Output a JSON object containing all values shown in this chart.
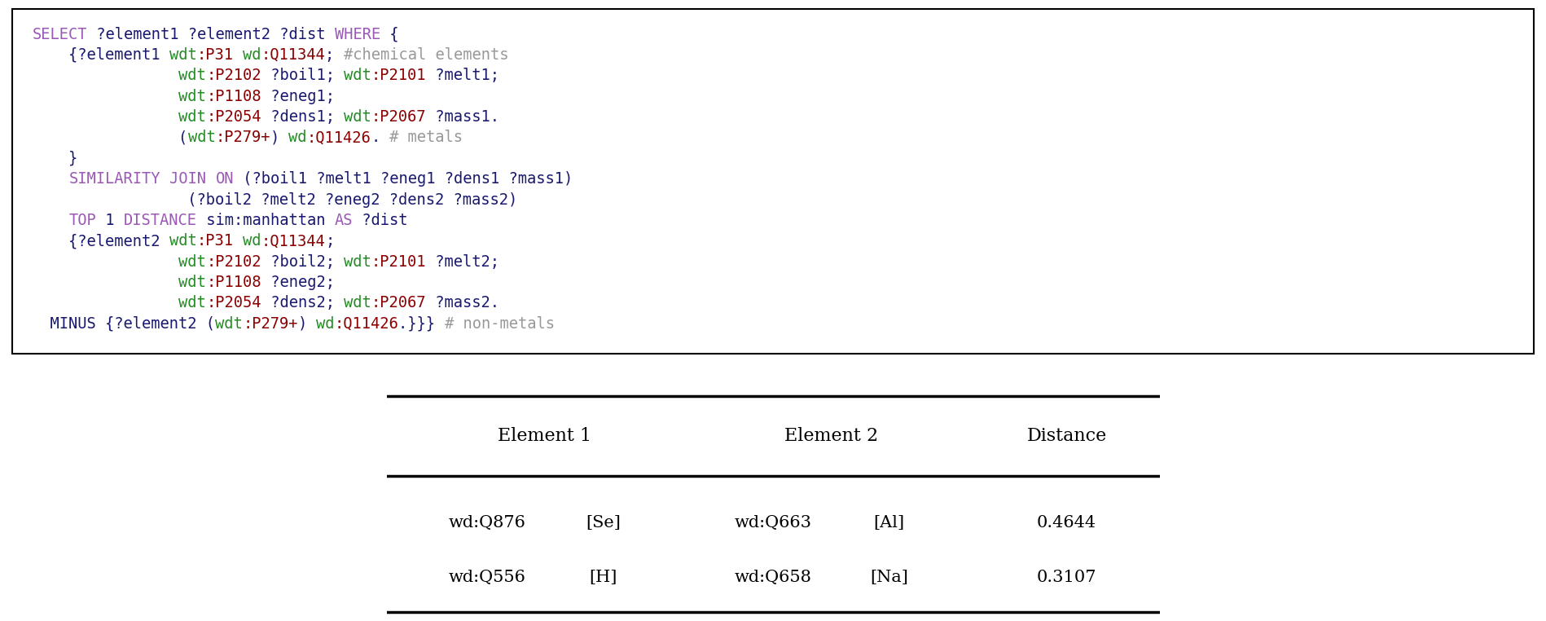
{
  "code_lines": [
    {
      "tokens": [
        {
          "text": "SELECT",
          "color": "#9B59B6"
        },
        {
          "text": " ?element1 ?element2 ?dist ",
          "color": "#191970"
        },
        {
          "text": "WHERE",
          "color": "#9B59B6"
        },
        {
          "text": " {",
          "color": "#191970"
        }
      ]
    },
    {
      "tokens": [
        {
          "text": "    {?element1 ",
          "color": "#191970"
        },
        {
          "text": "wdt",
          "color": "#228B22"
        },
        {
          "text": ":P31",
          "color": "#8B0000"
        },
        {
          "text": " ",
          "color": "#191970"
        },
        {
          "text": "wd",
          "color": "#228B22"
        },
        {
          "text": ":Q11344",
          "color": "#8B0000"
        },
        {
          "text": "; ",
          "color": "#191970"
        },
        {
          "text": "#chemical elements",
          "color": "#999999"
        }
      ]
    },
    {
      "tokens": [
        {
          "text": "                ",
          "color": "#191970"
        },
        {
          "text": "wdt",
          "color": "#228B22"
        },
        {
          "text": ":P2102",
          "color": "#8B0000"
        },
        {
          "text": " ?boil1; ",
          "color": "#191970"
        },
        {
          "text": "wdt",
          "color": "#228B22"
        },
        {
          "text": ":P2101",
          "color": "#8B0000"
        },
        {
          "text": " ?melt1;",
          "color": "#191970"
        }
      ]
    },
    {
      "tokens": [
        {
          "text": "                ",
          "color": "#191970"
        },
        {
          "text": "wdt",
          "color": "#228B22"
        },
        {
          "text": ":P1108",
          "color": "#8B0000"
        },
        {
          "text": " ?eneg1;",
          "color": "#191970"
        }
      ]
    },
    {
      "tokens": [
        {
          "text": "                ",
          "color": "#191970"
        },
        {
          "text": "wdt",
          "color": "#228B22"
        },
        {
          "text": ":P2054",
          "color": "#8B0000"
        },
        {
          "text": " ?dens1; ",
          "color": "#191970"
        },
        {
          "text": "wdt",
          "color": "#228B22"
        },
        {
          "text": ":P2067",
          "color": "#8B0000"
        },
        {
          "text": " ?mass1.",
          "color": "#191970"
        }
      ]
    },
    {
      "tokens": [
        {
          "text": "                (",
          "color": "#191970"
        },
        {
          "text": "wdt",
          "color": "#228B22"
        },
        {
          "text": ":P279+",
          "color": "#8B0000"
        },
        {
          "text": ") ",
          "color": "#191970"
        },
        {
          "text": "wd",
          "color": "#228B22"
        },
        {
          "text": ":Q11426",
          "color": "#8B0000"
        },
        {
          "text": ". ",
          "color": "#191970"
        },
        {
          "text": "# metals",
          "color": "#999999"
        }
      ]
    },
    {
      "tokens": [
        {
          "text": "    }",
          "color": "#191970"
        }
      ]
    },
    {
      "tokens": [
        {
          "text": "    ",
          "color": "#191970"
        },
        {
          "text": "SIMILARITY",
          "color": "#9B59B6"
        },
        {
          "text": " ",
          "color": "#191970"
        },
        {
          "text": "JOIN",
          "color": "#9B59B6"
        },
        {
          "text": " ",
          "color": "#191970"
        },
        {
          "text": "ON",
          "color": "#9B59B6"
        },
        {
          "text": " (?boil1 ?melt1 ?eneg1 ?dens1 ?mass1)",
          "color": "#191970"
        }
      ]
    },
    {
      "tokens": [
        {
          "text": "                 (?boil2 ?melt2 ?eneg2 ?dens2 ?mass2)",
          "color": "#191970"
        }
      ]
    },
    {
      "tokens": [
        {
          "text": "    ",
          "color": "#191970"
        },
        {
          "text": "TOP",
          "color": "#9B59B6"
        },
        {
          "text": " 1 ",
          "color": "#191970"
        },
        {
          "text": "DISTANCE",
          "color": "#9B59B6"
        },
        {
          "text": " sim:manhattan ",
          "color": "#191970"
        },
        {
          "text": "AS",
          "color": "#9B59B6"
        },
        {
          "text": " ?dist",
          "color": "#191970"
        }
      ]
    },
    {
      "tokens": [
        {
          "text": "    {?element2 ",
          "color": "#191970"
        },
        {
          "text": "wdt",
          "color": "#228B22"
        },
        {
          "text": ":P31",
          "color": "#8B0000"
        },
        {
          "text": " ",
          "color": "#191970"
        },
        {
          "text": "wd",
          "color": "#228B22"
        },
        {
          "text": ":Q11344",
          "color": "#8B0000"
        },
        {
          "text": ";",
          "color": "#191970"
        }
      ]
    },
    {
      "tokens": [
        {
          "text": "                ",
          "color": "#191970"
        },
        {
          "text": "wdt",
          "color": "#228B22"
        },
        {
          "text": ":P2102",
          "color": "#8B0000"
        },
        {
          "text": " ?boil2; ",
          "color": "#191970"
        },
        {
          "text": "wdt",
          "color": "#228B22"
        },
        {
          "text": ":P2101",
          "color": "#8B0000"
        },
        {
          "text": " ?melt2;",
          "color": "#191970"
        }
      ]
    },
    {
      "tokens": [
        {
          "text": "                ",
          "color": "#191970"
        },
        {
          "text": "wdt",
          "color": "#228B22"
        },
        {
          "text": ":P1108",
          "color": "#8B0000"
        },
        {
          "text": " ?eneg2;",
          "color": "#191970"
        }
      ]
    },
    {
      "tokens": [
        {
          "text": "                ",
          "color": "#191970"
        },
        {
          "text": "wdt",
          "color": "#228B22"
        },
        {
          "text": ":P2054",
          "color": "#8B0000"
        },
        {
          "text": " ?dens2; ",
          "color": "#191970"
        },
        {
          "text": "wdt",
          "color": "#228B22"
        },
        {
          "text": ":P2067",
          "color": "#8B0000"
        },
        {
          "text": " ?mass2.",
          "color": "#191970"
        }
      ]
    },
    {
      "tokens": [
        {
          "text": "  MINUS ",
          "color": "#191970"
        },
        {
          "text": "{?element2 (",
          "color": "#191970"
        },
        {
          "text": "wdt",
          "color": "#228B22"
        },
        {
          "text": ":P279+",
          "color": "#8B0000"
        },
        {
          "text": ") ",
          "color": "#191970"
        },
        {
          "text": "wd",
          "color": "#228B22"
        },
        {
          "text": ":Q11426",
          "color": "#8B0000"
        },
        {
          "text": ".}}} ",
          "color": "#191970"
        },
        {
          "text": "# non-metals",
          "color": "#999999"
        }
      ]
    }
  ],
  "table_col_headers": [
    "Element 1",
    "Element 2",
    "Distance"
  ],
  "table_rows": [
    [
      "wd:Q876",
      "[Se]",
      "wd:Q663",
      "[Al]",
      "0.4644"
    ],
    [
      "wd:Q556",
      "[H]",
      "wd:Q658",
      "[Na]",
      "0.3107"
    ]
  ],
  "code_font_size": 13.5,
  "table_header_font_size": 16,
  "table_data_font_size": 15,
  "bg_color": "#ffffff",
  "border_color": "#000000"
}
